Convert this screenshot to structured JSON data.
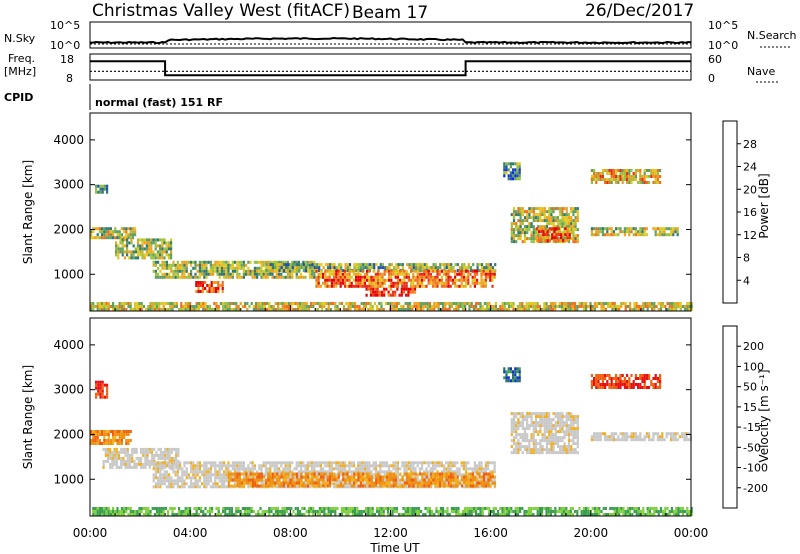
{
  "header": {
    "station": "Christmas Valley West (fitACF)",
    "beam": "Beam 17",
    "date": "26/Dec/2017"
  },
  "noise_panel": {
    "left_label": "N.Sky",
    "left_ticks": [
      "10^5",
      "10^0"
    ],
    "right_label": "N.Search",
    "right_ticks": [
      "10^5",
      "10^0"
    ]
  },
  "freq_panel": {
    "left_label_line1": "Freq.",
    "left_label_line2": "[MHz]",
    "left_ticks": [
      "18",
      "8"
    ],
    "right_label": "Nave",
    "right_ticks": [
      "60",
      "0"
    ],
    "freq_steps": [
      {
        "t0": 0,
        "t1": 3.0,
        "mhz": 15.2
      },
      {
        "t0": 3.0,
        "t1": 15.0,
        "mhz": 9.8
      },
      {
        "t0": 15.0,
        "t1": 24,
        "mhz": 15.2
      }
    ],
    "nave_level": 20
  },
  "cpid": {
    "label": "CPID",
    "value": "normal (fast) 151 RF"
  },
  "chart_data": [
    {
      "type": "heatmap",
      "title": "",
      "xlabel": "Time UT",
      "ylabel": "Slant Range [km]",
      "xlim": [
        "00:00",
        "24:00"
      ],
      "ylim": [
        180,
        4600
      ],
      "x_ticks": [
        "00:00",
        "04:00",
        "08:00",
        "12:00",
        "16:00",
        "20:00",
        "00:00"
      ],
      "y_ticks": [
        "1000",
        "2000",
        "3000",
        "4000"
      ],
      "colorbar": {
        "label": "Power [dB]",
        "ticks": [
          "4",
          "8",
          "12",
          "16",
          "20",
          "24",
          "28"
        ],
        "colors": [
          "#1030e0",
          "#2050b0",
          "#307a70",
          "#5fa060",
          "#9ac040",
          "#e0c820",
          "#f0a020",
          "#f07020",
          "#e83018",
          "#e80000"
        ]
      },
      "regions": [
        {
          "t0": 0.0,
          "t1": 24.0,
          "r0": 200,
          "r1": 380,
          "level": 0.55
        },
        {
          "t0": 0.0,
          "t1": 1.8,
          "r0": 1800,
          "r1": 2050,
          "level": 0.5
        },
        {
          "t0": 1.0,
          "t1": 3.2,
          "r0": 1350,
          "r1": 1800,
          "level": 0.45
        },
        {
          "t0": 2.5,
          "t1": 9.0,
          "r0": 900,
          "r1": 1300,
          "level": 0.45
        },
        {
          "t0": 4.2,
          "t1": 5.3,
          "r0": 600,
          "r1": 850,
          "level": 0.85
        },
        {
          "t0": 7.0,
          "t1": 16.2,
          "r0": 1050,
          "r1": 1250,
          "level": 0.4
        },
        {
          "t0": 9.0,
          "t1": 16.2,
          "r0": 700,
          "r1": 1100,
          "level": 0.75
        },
        {
          "t0": 11.0,
          "t1": 13.0,
          "r0": 500,
          "r1": 700,
          "level": 0.9
        },
        {
          "t0": 0.2,
          "t1": 0.7,
          "r0": 2800,
          "r1": 3000,
          "level": 0.35
        },
        {
          "t0": 16.8,
          "t1": 19.5,
          "r0": 1700,
          "r1": 2500,
          "level": 0.5
        },
        {
          "t0": 17.8,
          "t1": 19.2,
          "r0": 1750,
          "r1": 2050,
          "level": 0.8
        },
        {
          "t0": 20.0,
          "t1": 23.5,
          "r0": 1850,
          "r1": 2050,
          "level": 0.5
        },
        {
          "t0": 20.0,
          "t1": 22.8,
          "r0": 3050,
          "r1": 3350,
          "level": 0.6
        },
        {
          "t0": 16.5,
          "t1": 17.2,
          "r0": 3100,
          "r1": 3500,
          "level": 0.3
        }
      ]
    },
    {
      "type": "heatmap",
      "title": "",
      "xlabel": "Time UT",
      "ylabel": "Slant Range [km]",
      "xlim": [
        "00:00",
        "24:00"
      ],
      "ylim": [
        180,
        4600
      ],
      "x_ticks": [
        "00:00",
        "04:00",
        "08:00",
        "12:00",
        "16:00",
        "20:00",
        "00:00"
      ],
      "y_ticks": [
        "1000",
        "2000",
        "3000",
        "4000"
      ],
      "colorbar": {
        "label": "Velocity [m s⁻¹]",
        "ticks": [
          "200",
          "100",
          "50",
          "15",
          "-15",
          "-50",
          "-100",
          "-200"
        ],
        "colors": [
          "#1030d0",
          "#2a6a70",
          "#3aa050",
          "#80d040",
          "#c8c8c8",
          "#c8c8c8",
          "#f0b020",
          "#f09010",
          "#f06010",
          "#e81010"
        ]
      },
      "regions": [
        {
          "t0": 0.0,
          "t1": 24.0,
          "r0": 200,
          "r1": 380,
          "level": "green"
        },
        {
          "t0": 0.0,
          "t1": 1.6,
          "r0": 1800,
          "r1": 2100,
          "level": "orange"
        },
        {
          "t0": 0.5,
          "t1": 3.5,
          "r0": 1250,
          "r1": 1700,
          "level": "grey"
        },
        {
          "t0": 2.5,
          "t1": 16.2,
          "r0": 800,
          "r1": 1400,
          "level": "grey"
        },
        {
          "t0": 5.5,
          "t1": 16.2,
          "r0": 850,
          "r1": 1150,
          "level": "orange"
        },
        {
          "t0": 0.2,
          "t1": 0.7,
          "r0": 2800,
          "r1": 3200,
          "level": "red"
        },
        {
          "t0": 16.8,
          "t1": 19.5,
          "r0": 1600,
          "r1": 2500,
          "level": "grey"
        },
        {
          "t0": 20.0,
          "t1": 24.0,
          "r0": 1850,
          "r1": 2050,
          "level": "grey"
        },
        {
          "t0": 20.0,
          "t1": 22.8,
          "r0": 3050,
          "r1": 3350,
          "level": "red"
        },
        {
          "t0": 16.5,
          "t1": 17.2,
          "r0": 3200,
          "r1": 3500,
          "level": "blue"
        }
      ]
    }
  ]
}
